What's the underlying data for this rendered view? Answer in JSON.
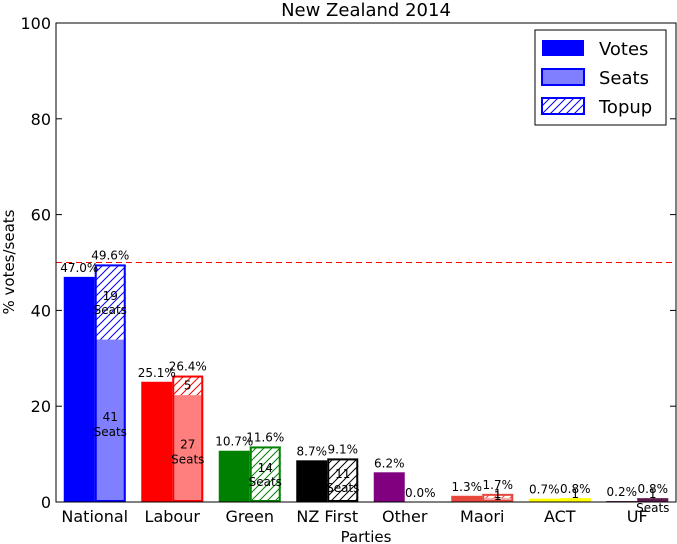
{
  "chart_data": {
    "type": "bar",
    "title": "New Zealand 2014",
    "xlabel": "Parties",
    "ylabel": "% votes/seats",
    "ylim": [
      0,
      100
    ],
    "yticks": [
      0,
      20,
      40,
      60,
      80,
      100
    ],
    "grid": false,
    "legend_position": "top-right",
    "threshold_line": {
      "value": 50,
      "style": "dashed",
      "color": "#ff0000"
    },
    "legend": [
      {
        "label": "Votes",
        "kind": "solid"
      },
      {
        "label": "Seats",
        "kind": "light"
      },
      {
        "label": "Topup",
        "kind": "hatched"
      }
    ],
    "seats_word": "Seats",
    "parties": [
      {
        "name": "National",
        "votes": 47.0,
        "seats": 49.6,
        "electorate_pct": 33.9,
        "electorate_seats": 41,
        "topup_seats": 19,
        "votes_label": "47.0%",
        "seats_label": "49.6%",
        "color": "#0000ff"
      },
      {
        "name": "Labour",
        "votes": 25.1,
        "seats": 26.4,
        "electorate_pct": 22.3,
        "electorate_seats": 27,
        "topup_seats": 5,
        "votes_label": "25.1%",
        "seats_label": "26.4%",
        "color": "#ff0000"
      },
      {
        "name": "Green",
        "votes": 10.7,
        "seats": 11.6,
        "electorate_pct": 0.0,
        "electorate_seats": 0,
        "topup_seats": 14,
        "votes_label": "10.7%",
        "seats_label": "11.6%",
        "color": "#008000"
      },
      {
        "name": "NZ First",
        "votes": 8.7,
        "seats": 9.1,
        "electorate_pct": 0.0,
        "electorate_seats": 0,
        "topup_seats": 11,
        "votes_label": "8.7%",
        "seats_label": "9.1%",
        "color": "#000000"
      },
      {
        "name": "Other",
        "votes": 6.2,
        "seats": 0.0,
        "electorate_pct": 0.0,
        "electorate_seats": 0,
        "topup_seats": 0,
        "votes_label": "6.2%",
        "seats_label": "0.0%",
        "color": "#800080"
      },
      {
        "name": "Maori",
        "votes": 1.3,
        "seats": 1.7,
        "electorate_pct": 0.8,
        "electorate_seats": 1,
        "topup_seats": 1,
        "votes_label": "1.3%",
        "seats_label": "1.7%",
        "color": "#e8483c"
      },
      {
        "name": "ACT",
        "votes": 0.7,
        "seats": 0.8,
        "electorate_pct": 0.8,
        "electorate_seats": 1,
        "topup_seats": 0,
        "votes_label": "0.7%",
        "seats_label": "0.8%",
        "color": "#ffff00"
      },
      {
        "name": "UF",
        "votes": 0.2,
        "seats": 0.8,
        "electorate_pct": 0.0,
        "electorate_seats": 0,
        "topup_seats": 1,
        "votes_label": "0.2%",
        "seats_label": "0.8%",
        "color": "#5c1a4a"
      }
    ]
  }
}
